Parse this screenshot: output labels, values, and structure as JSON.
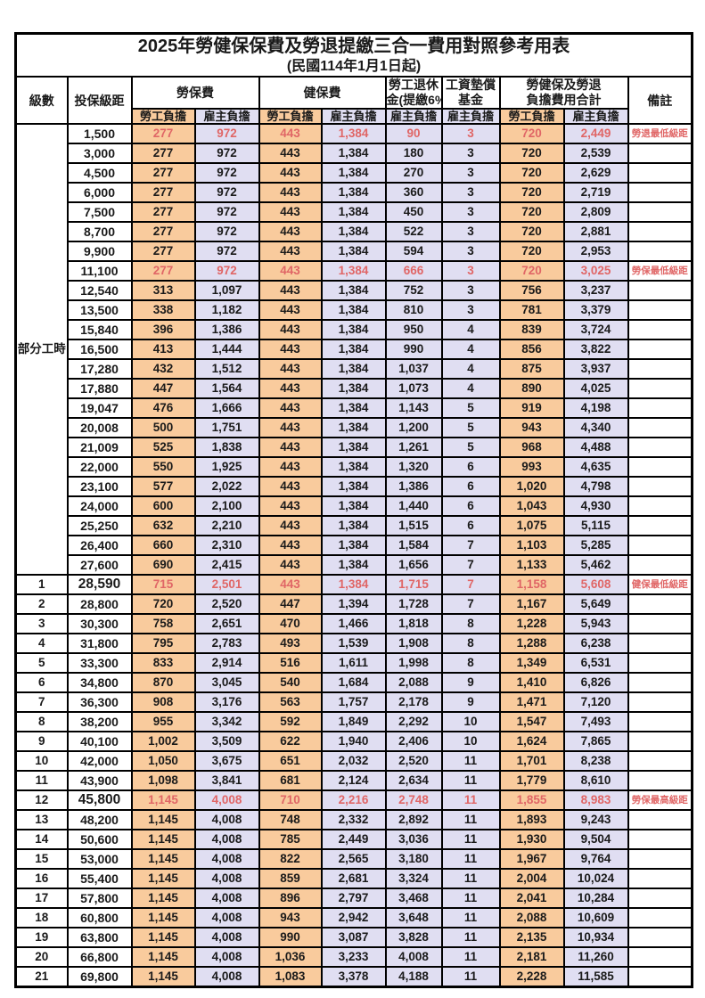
{
  "title": {
    "line1": "2025年勞健保保費及勞退提繳三合一費用對照參考用表",
    "line2": "(民國114年1月1日起)"
  },
  "colors": {
    "employee_column_bg": "#f9cb9d",
    "employer_column_bg": "#e0def2",
    "highlight_text": "#e06666",
    "border": "#000000"
  },
  "table": {
    "header": {
      "level_label": "級數",
      "bracket_label": "投保級距",
      "remark_label": "備註",
      "groups": [
        {
          "line1": "勞保費",
          "line2": ""
        },
        {
          "line1": "健保費",
          "line2": ""
        },
        {
          "line1": "勞工退休",
          "line2": "金(提繳6%)"
        },
        {
          "line1": "工資墊償",
          "line2": "基金"
        },
        {
          "line1": "勞健保及勞退",
          "line2": "負擔費用合計"
        }
      ],
      "sub_labels": [
        {
          "label": "勞工負擔",
          "type": "employee"
        },
        {
          "label": "雇主負擔",
          "type": "employer"
        },
        {
          "label": "勞工負擔",
          "type": "employee"
        },
        {
          "label": "雇主負擔",
          "type": "employer"
        },
        {
          "label": "雇主負擔",
          "type": "employer"
        },
        {
          "label": "雇主負擔",
          "type": "employer"
        },
        {
          "label": "勞工負擔",
          "type": "employee"
        },
        {
          "label": "雇主負擔",
          "type": "employer"
        }
      ]
    },
    "part_time_label": "部分工時",
    "rows": [
      {
        "level": "",
        "bracket": "1,500",
        "values": [
          "277",
          "972",
          "443",
          "1,384",
          "90",
          "3",
          "720",
          "2,449"
        ],
        "remark": "勞退最低級距",
        "red": true
      },
      {
        "level": "",
        "bracket": "3,000",
        "values": [
          "277",
          "972",
          "443",
          "1,384",
          "180",
          "3",
          "720",
          "2,539"
        ],
        "remark": "",
        "red": false
      },
      {
        "level": "",
        "bracket": "4,500",
        "values": [
          "277",
          "972",
          "443",
          "1,384",
          "270",
          "3",
          "720",
          "2,629"
        ],
        "remark": "",
        "red": false
      },
      {
        "level": "",
        "bracket": "6,000",
        "values": [
          "277",
          "972",
          "443",
          "1,384",
          "360",
          "3",
          "720",
          "2,719"
        ],
        "remark": "",
        "red": false
      },
      {
        "level": "",
        "bracket": "7,500",
        "values": [
          "277",
          "972",
          "443",
          "1,384",
          "450",
          "3",
          "720",
          "2,809"
        ],
        "remark": "",
        "red": false
      },
      {
        "level": "",
        "bracket": "8,700",
        "values": [
          "277",
          "972",
          "443",
          "1,384",
          "522",
          "3",
          "720",
          "2,881"
        ],
        "remark": "",
        "red": false
      },
      {
        "level": "",
        "bracket": "9,900",
        "values": [
          "277",
          "972",
          "443",
          "1,384",
          "594",
          "3",
          "720",
          "2,953"
        ],
        "remark": "",
        "red": false
      },
      {
        "level": "",
        "bracket": "11,100",
        "values": [
          "277",
          "972",
          "443",
          "1,384",
          "666",
          "3",
          "720",
          "3,025"
        ],
        "remark": "勞保最低級距",
        "red": true
      },
      {
        "level": "",
        "bracket": "12,540",
        "values": [
          "313",
          "1,097",
          "443",
          "1,384",
          "752",
          "3",
          "756",
          "3,237"
        ],
        "remark": "",
        "red": false
      },
      {
        "level": "",
        "bracket": "13,500",
        "values": [
          "338",
          "1,182",
          "443",
          "1,384",
          "810",
          "3",
          "781",
          "3,379"
        ],
        "remark": "",
        "red": false
      },
      {
        "level": "",
        "bracket": "15,840",
        "values": [
          "396",
          "1,386",
          "443",
          "1,384",
          "950",
          "4",
          "839",
          "3,724"
        ],
        "remark": "",
        "red": false
      },
      {
        "level": "",
        "bracket": "16,500",
        "values": [
          "413",
          "1,444",
          "443",
          "1,384",
          "990",
          "4",
          "856",
          "3,822"
        ],
        "remark": "",
        "red": false
      },
      {
        "level": "",
        "bracket": "17,280",
        "values": [
          "432",
          "1,512",
          "443",
          "1,384",
          "1,037",
          "4",
          "875",
          "3,937"
        ],
        "remark": "",
        "red": false
      },
      {
        "level": "",
        "bracket": "17,880",
        "values": [
          "447",
          "1,564",
          "443",
          "1,384",
          "1,073",
          "4",
          "890",
          "4,025"
        ],
        "remark": "",
        "red": false
      },
      {
        "level": "",
        "bracket": "19,047",
        "values": [
          "476",
          "1,666",
          "443",
          "1,384",
          "1,143",
          "5",
          "919",
          "4,198"
        ],
        "remark": "",
        "red": false
      },
      {
        "level": "",
        "bracket": "20,008",
        "values": [
          "500",
          "1,751",
          "443",
          "1,384",
          "1,200",
          "5",
          "943",
          "4,340"
        ],
        "remark": "",
        "red": false
      },
      {
        "level": "",
        "bracket": "21,009",
        "values": [
          "525",
          "1,838",
          "443",
          "1,384",
          "1,261",
          "5",
          "968",
          "4,488"
        ],
        "remark": "",
        "red": false
      },
      {
        "level": "",
        "bracket": "22,000",
        "values": [
          "550",
          "1,925",
          "443",
          "1,384",
          "1,320",
          "6",
          "993",
          "4,635"
        ],
        "remark": "",
        "red": false
      },
      {
        "level": "",
        "bracket": "23,100",
        "values": [
          "577",
          "2,022",
          "443",
          "1,384",
          "1,386",
          "6",
          "1,020",
          "4,798"
        ],
        "remark": "",
        "red": false
      },
      {
        "level": "",
        "bracket": "24,000",
        "values": [
          "600",
          "2,100",
          "443",
          "1,384",
          "1,440",
          "6",
          "1,043",
          "4,930"
        ],
        "remark": "",
        "red": false
      },
      {
        "level": "",
        "bracket": "25,250",
        "values": [
          "632",
          "2,210",
          "443",
          "1,384",
          "1,515",
          "6",
          "1,075",
          "5,115"
        ],
        "remark": "",
        "red": false
      },
      {
        "level": "",
        "bracket": "26,400",
        "values": [
          "660",
          "2,310",
          "443",
          "1,384",
          "1,584",
          "7",
          "1,103",
          "5,285"
        ],
        "remark": "",
        "red": false
      },
      {
        "level": "",
        "bracket": "27,600",
        "values": [
          "690",
          "2,415",
          "443",
          "1,384",
          "1,656",
          "7",
          "1,133",
          "5,462"
        ],
        "remark": "",
        "red": false
      },
      {
        "level": "1",
        "bracket": "28,590",
        "values": [
          "715",
          "2,501",
          "443",
          "1,384",
          "1,715",
          "7",
          "1,158",
          "5,608"
        ],
        "remark": "健保最低級距",
        "red": true
      },
      {
        "level": "2",
        "bracket": "28,800",
        "values": [
          "720",
          "2,520",
          "447",
          "1,394",
          "1,728",
          "7",
          "1,167",
          "5,649"
        ],
        "remark": "",
        "red": false
      },
      {
        "level": "3",
        "bracket": "30,300",
        "values": [
          "758",
          "2,651",
          "470",
          "1,466",
          "1,818",
          "8",
          "1,228",
          "5,943"
        ],
        "remark": "",
        "red": false
      },
      {
        "level": "4",
        "bracket": "31,800",
        "values": [
          "795",
          "2,783",
          "493",
          "1,539",
          "1,908",
          "8",
          "1,288",
          "6,238"
        ],
        "remark": "",
        "red": false
      },
      {
        "level": "5",
        "bracket": "33,300",
        "values": [
          "833",
          "2,914",
          "516",
          "1,611",
          "1,998",
          "8",
          "1,349",
          "6,531"
        ],
        "remark": "",
        "red": false
      },
      {
        "level": "6",
        "bracket": "34,800",
        "values": [
          "870",
          "3,045",
          "540",
          "1,684",
          "2,088",
          "9",
          "1,410",
          "6,826"
        ],
        "remark": "",
        "red": false
      },
      {
        "level": "7",
        "bracket": "36,300",
        "values": [
          "908",
          "3,176",
          "563",
          "1,757",
          "2,178",
          "9",
          "1,471",
          "7,120"
        ],
        "remark": "",
        "red": false
      },
      {
        "level": "8",
        "bracket": "38,200",
        "values": [
          "955",
          "3,342",
          "592",
          "1,849",
          "2,292",
          "10",
          "1,547",
          "7,493"
        ],
        "remark": "",
        "red": false
      },
      {
        "level": "9",
        "bracket": "40,100",
        "values": [
          "1,002",
          "3,509",
          "622",
          "1,940",
          "2,406",
          "10",
          "1,624",
          "7,865"
        ],
        "remark": "",
        "red": false
      },
      {
        "level": "10",
        "bracket": "42,000",
        "values": [
          "1,050",
          "3,675",
          "651",
          "2,032",
          "2,520",
          "11",
          "1,701",
          "8,238"
        ],
        "remark": "",
        "red": false
      },
      {
        "level": "11",
        "bracket": "43,900",
        "values": [
          "1,098",
          "3,841",
          "681",
          "2,124",
          "2,634",
          "11",
          "1,779",
          "8,610"
        ],
        "remark": "",
        "red": false
      },
      {
        "level": "12",
        "bracket": "45,800",
        "values": [
          "1,145",
          "4,008",
          "710",
          "2,216",
          "2,748",
          "11",
          "1,855",
          "8,983"
        ],
        "remark": "勞保最高級距",
        "red": true
      },
      {
        "level": "13",
        "bracket": "48,200",
        "values": [
          "1,145",
          "4,008",
          "748",
          "2,332",
          "2,892",
          "11",
          "1,893",
          "9,243"
        ],
        "remark": "",
        "red": false
      },
      {
        "level": "14",
        "bracket": "50,600",
        "values": [
          "1,145",
          "4,008",
          "785",
          "2,449",
          "3,036",
          "11",
          "1,930",
          "9,504"
        ],
        "remark": "",
        "red": false
      },
      {
        "level": "15",
        "bracket": "53,000",
        "values": [
          "1,145",
          "4,008",
          "822",
          "2,565",
          "3,180",
          "11",
          "1,967",
          "9,764"
        ],
        "remark": "",
        "red": false
      },
      {
        "level": "16",
        "bracket": "55,400",
        "values": [
          "1,145",
          "4,008",
          "859",
          "2,681",
          "3,324",
          "11",
          "2,004",
          "10,024"
        ],
        "remark": "",
        "red": false
      },
      {
        "level": "17",
        "bracket": "57,800",
        "values": [
          "1,145",
          "4,008",
          "896",
          "2,797",
          "3,468",
          "11",
          "2,041",
          "10,284"
        ],
        "remark": "",
        "red": false
      },
      {
        "level": "18",
        "bracket": "60,800",
        "values": [
          "1,145",
          "4,008",
          "943",
          "2,942",
          "3,648",
          "11",
          "2,088",
          "10,609"
        ],
        "remark": "",
        "red": false
      },
      {
        "level": "19",
        "bracket": "63,800",
        "values": [
          "1,145",
          "4,008",
          "990",
          "3,087",
          "3,828",
          "11",
          "2,135",
          "10,934"
        ],
        "remark": "",
        "red": false
      },
      {
        "level": "20",
        "bracket": "66,800",
        "values": [
          "1,145",
          "4,008",
          "1,036",
          "3,233",
          "4,008",
          "11",
          "2,181",
          "11,260"
        ],
        "remark": "",
        "red": false
      },
      {
        "level": "21",
        "bracket": "69,800",
        "values": [
          "1,145",
          "4,008",
          "1,083",
          "3,378",
          "4,188",
          "11",
          "2,228",
          "11,585"
        ],
        "remark": "",
        "red": false
      }
    ]
  }
}
